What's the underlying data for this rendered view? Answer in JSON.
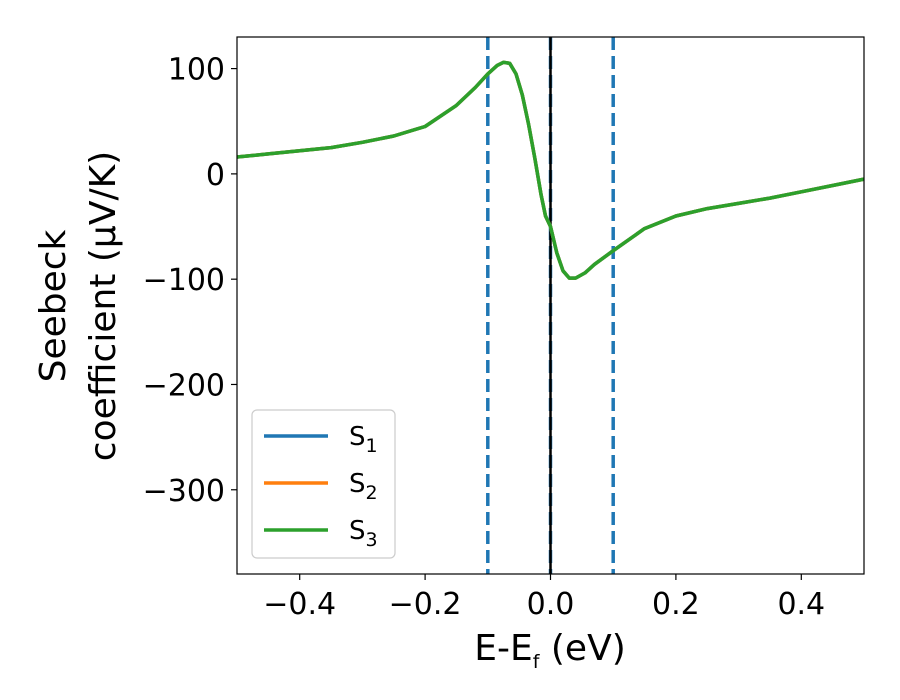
{
  "chart_data": {
    "type": "line",
    "xlabel": {
      "main": "E-E",
      "sub": "f",
      "tail": " (eV)"
    },
    "ylabel": {
      "line1": "Seebeck",
      "line2": "coefficient  (μV/K)"
    },
    "xlim": [
      -0.5,
      0.5
    ],
    "ylim": [
      -380,
      130
    ],
    "xticks": [
      -0.4,
      -0.2,
      0.0,
      0.2,
      0.4
    ],
    "xtick_labels": [
      "−0.4",
      "−0.2",
      "0.0",
      "0.2",
      "0.4"
    ],
    "yticks": [
      100,
      0,
      -100,
      -200,
      -300
    ],
    "ytick_labels": [
      "100",
      "0",
      "−100",
      "−200",
      "−300"
    ],
    "grid": false,
    "legend_position": "lower-left",
    "series": [
      {
        "name": "S",
        "sub": "1",
        "color": "#1f77b4",
        "x": [
          -0.5,
          -0.45,
          -0.4,
          -0.35,
          -0.3,
          -0.25,
          -0.2,
          -0.15,
          -0.12,
          -0.1,
          -0.085,
          -0.075,
          -0.065,
          -0.055,
          -0.045,
          -0.035,
          -0.025,
          -0.015,
          -0.008,
          0.0,
          0.01,
          0.02,
          0.03,
          0.04,
          0.055,
          0.07,
          0.1,
          0.15,
          0.2,
          0.25,
          0.3,
          0.35,
          0.4,
          0.45,
          0.5
        ],
        "y": [
          16,
          19,
          22,
          25,
          30,
          36,
          45,
          65,
          82,
          95,
          103,
          106,
          105,
          95,
          75,
          47,
          15,
          -20,
          -40,
          -50,
          -75,
          -92,
          -99,
          -99,
          -94,
          -86,
          -73,
          -52,
          -40,
          -33,
          -28,
          -23,
          -17,
          -11,
          -5
        ]
      },
      {
        "name": "S",
        "sub": "2",
        "color": "#ff7f0e",
        "x": [
          -0.5,
          -0.45,
          -0.4,
          -0.35,
          -0.3,
          -0.25,
          -0.2,
          -0.15,
          -0.12,
          -0.1,
          -0.085,
          -0.075,
          -0.065,
          -0.055,
          -0.045,
          -0.035,
          -0.025,
          -0.015,
          -0.008,
          0.0,
          0.01,
          0.02,
          0.03,
          0.04,
          0.055,
          0.07,
          0.1,
          0.15,
          0.2,
          0.25,
          0.3,
          0.35,
          0.4,
          0.45,
          0.5
        ],
        "y": [
          16,
          19,
          22,
          25,
          30,
          36,
          45,
          65,
          82,
          95,
          103,
          106,
          105,
          95,
          75,
          47,
          15,
          -20,
          -40,
          -50,
          -75,
          -92,
          -99,
          -99,
          -94,
          -86,
          -73,
          -52,
          -40,
          -33,
          -28,
          -23,
          -17,
          -11,
          -5
        ]
      },
      {
        "name": "S",
        "sub": "3",
        "color": "#2ca02c",
        "x": [
          -0.5,
          -0.45,
          -0.4,
          -0.35,
          -0.3,
          -0.25,
          -0.2,
          -0.15,
          -0.12,
          -0.1,
          -0.085,
          -0.075,
          -0.065,
          -0.055,
          -0.045,
          -0.035,
          -0.025,
          -0.015,
          -0.008,
          0.0,
          0.01,
          0.02,
          0.03,
          0.04,
          0.055,
          0.07,
          0.1,
          0.15,
          0.2,
          0.25,
          0.3,
          0.35,
          0.4,
          0.45,
          0.5
        ],
        "y": [
          16,
          19,
          22,
          25,
          30,
          36,
          45,
          65,
          82,
          95,
          103,
          106,
          105,
          95,
          75,
          47,
          15,
          -20,
          -40,
          -50,
          -75,
          -92,
          -99,
          -99,
          -94,
          -86,
          -73,
          -52,
          -40,
          -33,
          -28,
          -23,
          -17,
          -11,
          -5
        ]
      }
    ],
    "vlines": [
      {
        "x": -0.1,
        "style": "dashed",
        "color": "#1f77b4"
      },
      {
        "x": 0.0,
        "style": "dashed",
        "color": "#1f77b4"
      },
      {
        "x": 0.1,
        "style": "dashed",
        "color": "#1f77b4"
      },
      {
        "x": 0.0,
        "style": "solid",
        "color": "#000000"
      }
    ]
  }
}
